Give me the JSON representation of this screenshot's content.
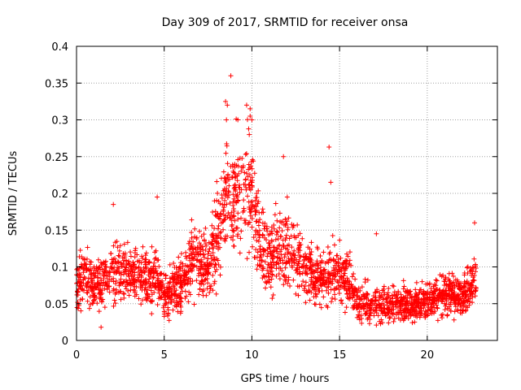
{
  "chart_data": {
    "type": "scatter",
    "title": "Day 309 of 2017, SRMTID for receiver onsa",
    "xlabel": "GPS time / hours",
    "ylabel": "SRMTID / TECUs",
    "xlim": [
      0,
      24
    ],
    "ylim": [
      0,
      0.4
    ],
    "xticks": [
      0,
      5,
      10,
      15,
      20
    ],
    "xtick_labels": [
      "0",
      "5",
      "10",
      "15",
      "20"
    ],
    "yticks": [
      0,
      0.05,
      0.1,
      0.15,
      0.2,
      0.25,
      0.3,
      0.35,
      0.4
    ],
    "ytick_labels": [
      "0",
      "0.05",
      "0.1",
      "0.15",
      "0.2",
      "0.25",
      "0.3",
      "0.35",
      "0.4"
    ],
    "grid": true,
    "marker": "+",
    "color": "#ff0000",
    "series": [
      {
        "name": "SRMTID",
        "profile_x": [
          0,
          0.5,
          1,
          1.5,
          2,
          2.5,
          3,
          3.5,
          4,
          4.5,
          5,
          5.5,
          6,
          6.5,
          7,
          7.5,
          8,
          8.5,
          9,
          9.5,
          10,
          10.5,
          11,
          11.5,
          12,
          12.5,
          13,
          13.5,
          14,
          14.5,
          15,
          15.5,
          16,
          16.5,
          17,
          17.5,
          18,
          18.5,
          19,
          19.5,
          20,
          20.5,
          21,
          21.5,
          22,
          22.5,
          22.8
        ],
        "profile_mean": [
          0.08,
          0.085,
          0.075,
          0.08,
          0.09,
          0.095,
          0.09,
          0.085,
          0.08,
          0.085,
          0.06,
          0.07,
          0.08,
          0.1,
          0.11,
          0.1,
          0.14,
          0.2,
          0.2,
          0.2,
          0.2,
          0.12,
          0.11,
          0.12,
          0.13,
          0.11,
          0.1,
          0.09,
          0.085,
          0.09,
          0.09,
          0.08,
          0.05,
          0.05,
          0.05,
          0.05,
          0.048,
          0.05,
          0.05,
          0.05,
          0.055,
          0.06,
          0.065,
          0.065,
          0.06,
          0.07,
          0.09
        ],
        "outliers": [
          {
            "x": 8.5,
            "y": 0.325
          },
          {
            "x": 8.6,
            "y": 0.32
          },
          {
            "x": 8.55,
            "y": 0.3
          },
          {
            "x": 8.8,
            "y": 0.36
          },
          {
            "x": 9.2,
            "y": 0.3
          },
          {
            "x": 9.7,
            "y": 0.32
          },
          {
            "x": 9.9,
            "y": 0.315
          },
          {
            "x": 9.9,
            "y": 0.305
          },
          {
            "x": 9.85,
            "y": 0.28
          },
          {
            "x": 10.0,
            "y": 0.3
          },
          {
            "x": 14.4,
            "y": 0.263
          },
          {
            "x": 14.5,
            "y": 0.215
          },
          {
            "x": 11.8,
            "y": 0.25
          },
          {
            "x": 4.6,
            "y": 0.195
          },
          {
            "x": 2.1,
            "y": 0.185
          },
          {
            "x": 17.1,
            "y": 0.145
          },
          {
            "x": 22.7,
            "y": 0.16
          },
          {
            "x": 1.4,
            "y": 0.018
          }
        ],
        "y_min_observed": 0.015,
        "y_max_observed": 0.36
      }
    ]
  }
}
